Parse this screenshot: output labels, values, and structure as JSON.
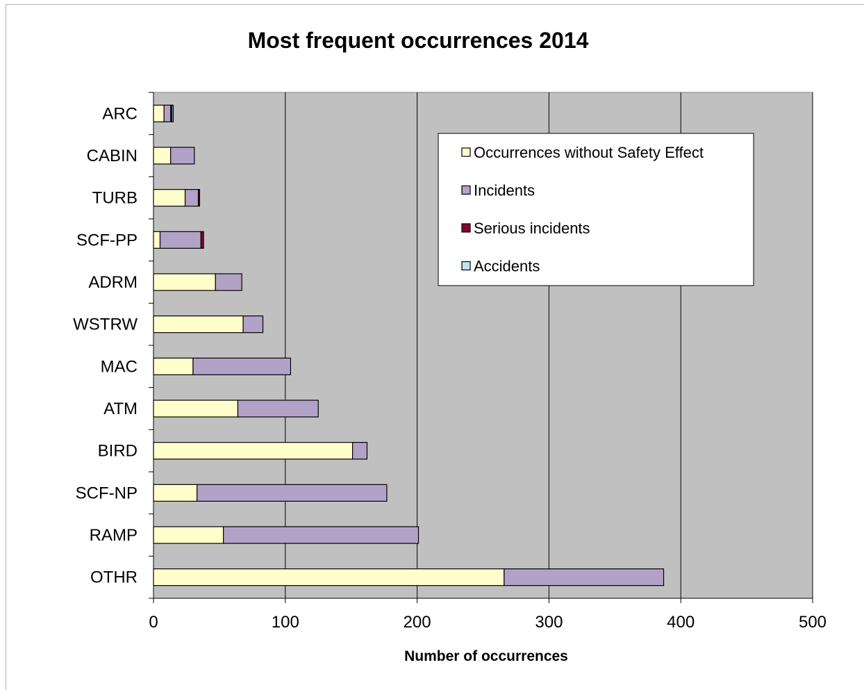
{
  "chart_data": {
    "type": "bar",
    "orientation": "horizontal",
    "stacked": true,
    "title": "Most frequent occurrences 2014",
    "xlabel": "Number of occurrences",
    "ylabel": "",
    "xlim": [
      0,
      500
    ],
    "xticks": [
      0,
      100,
      200,
      300,
      400,
      500
    ],
    "grid": "vertical",
    "legend_position": "top-right",
    "categories": [
      "ARC",
      "CABIN",
      "TURB",
      "SCF-PP",
      "ADRM",
      "WSTRW",
      "MAC",
      "ATM",
      "BIRD",
      "SCF-NP",
      "RAMP",
      "OTHR"
    ],
    "series": [
      {
        "name": "Occurrences without Safety Effect",
        "color": "#FFFFCC",
        "values": [
          8,
          13,
          24,
          5,
          47,
          68,
          30,
          64,
          151,
          33,
          53,
          266
        ]
      },
      {
        "name": "Incidents",
        "color": "#B3A2C7",
        "values": [
          5,
          18,
          10,
          31,
          20,
          15,
          74,
          61,
          11,
          144,
          148,
          121
        ]
      },
      {
        "name": "Serious incidents",
        "color": "#8B0033",
        "values": [
          1,
          0,
          1,
          2,
          0,
          0,
          0,
          0,
          0,
          0,
          0,
          0
        ]
      },
      {
        "name": "Accidents",
        "color": "#BFE3F0",
        "values": [
          1,
          0,
          0,
          0,
          0,
          0,
          0,
          0,
          0,
          0,
          0,
          0
        ]
      }
    ],
    "plot_background": "#C0C0C0"
  }
}
